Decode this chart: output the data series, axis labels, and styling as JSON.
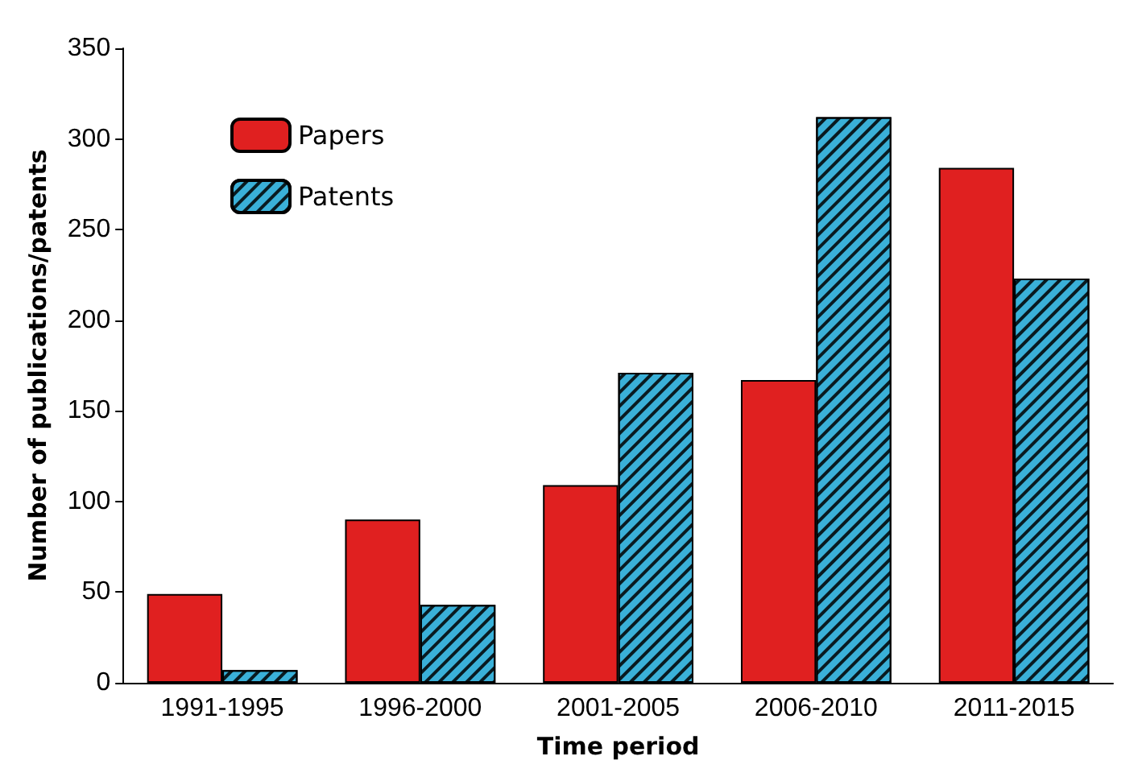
{
  "chart_data": {
    "type": "bar",
    "xlabel": "Time period",
    "ylabel": "Number of publications/patents",
    "categories": [
      "1991-1995",
      "1996-2000",
      "2001-2005",
      "2006-2010",
      "2011-2015"
    ],
    "series": [
      {
        "name": "Papers",
        "color": "#e02020",
        "values": [
          49,
          90,
          109,
          167,
          284
        ]
      },
      {
        "name": "Patents",
        "color": "#3ab0d8",
        "values": [
          7,
          43,
          171,
          312,
          223
        ]
      }
    ],
    "ylim": [
      0,
      350
    ],
    "yticks": [
      0,
      50,
      100,
      150,
      200,
      250,
      300,
      350
    ],
    "grid": false,
    "legend": "top left"
  }
}
